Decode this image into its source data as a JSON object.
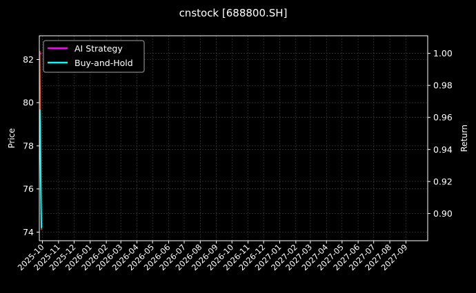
{
  "chart_data": {
    "type": "line",
    "title": "cnstock [688800.SH]",
    "ylabel": "Price",
    "y2label": "Return",
    "ylim": [
      73.6,
      83.1
    ],
    "y2lim": [
      0.883,
      1.011
    ],
    "xlim": [
      "2025-09-25",
      "2027-10-13"
    ],
    "x_ticks": [
      "2025-10",
      "2025-11",
      "2025-12",
      "2026-01",
      "2026-02",
      "2026-03",
      "2026-04",
      "2026-05",
      "2026-06",
      "2026-07",
      "2026-08",
      "2026-09",
      "2026-10",
      "2026-11",
      "2026-12",
      "2027-01",
      "2027-02",
      "2027-03",
      "2027-04",
      "2027-05",
      "2027-06",
      "2027-07",
      "2027-08",
      "2027-09"
    ],
    "y_ticks": [
      74,
      76,
      78,
      80,
      82
    ],
    "y2_ticks": [
      0.9,
      0.92,
      0.94,
      0.96,
      0.98,
      1.0
    ],
    "y2_tick_labels": [
      "0.90",
      "0.92",
      "0.94",
      "0.96",
      "0.98",
      "1.00"
    ],
    "grid": true,
    "legend_position": "top-left",
    "x": [
      "2025-09-26",
      "2025-09-27",
      "2025-09-28",
      "2025-09-29"
    ],
    "price_series": {
      "color": "#e8561a",
      "values": [
        82.4,
        79.6,
        77.4,
        74.1
      ]
    },
    "series": [
      {
        "name": "AI Strategy",
        "axis": "right",
        "color": "#ff00ff",
        "values": [
          1.0,
          1.0,
          1.0,
          1.0
        ]
      },
      {
        "name": "Buy-and-Hold",
        "axis": "right",
        "color": "#00ffff",
        "values": [
          0.965,
          0.935,
          0.912,
          0.891
        ]
      }
    ]
  }
}
